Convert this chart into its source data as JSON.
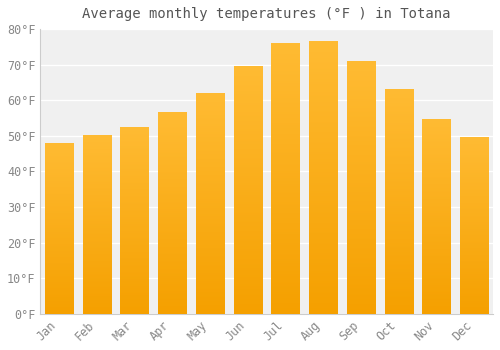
{
  "title": "Average monthly temperatures (°F ) in Totana",
  "months": [
    "Jan",
    "Feb",
    "Mar",
    "Apr",
    "May",
    "Jun",
    "Jul",
    "Aug",
    "Sep",
    "Oct",
    "Nov",
    "Dec"
  ],
  "values": [
    48,
    50,
    52.5,
    56.5,
    62,
    69.5,
    76,
    76.5,
    71,
    63,
    54.5,
    49.5
  ],
  "bar_color_top": "#FFBB33",
  "bar_color_bottom": "#F5A000",
  "background_color": "#FFFFFF",
  "plot_bg_color": "#F0F0F0",
  "grid_color": "#FFFFFF",
  "text_color": "#888888",
  "title_color": "#555555",
  "ylim": [
    0,
    80
  ],
  "yticks": [
    0,
    10,
    20,
    30,
    40,
    50,
    60,
    70,
    80
  ],
  "ytick_labels": [
    "0°F",
    "10°F",
    "20°F",
    "30°F",
    "40°F",
    "50°F",
    "60°F",
    "70°F",
    "80°F"
  ],
  "title_fontsize": 10,
  "tick_fontsize": 8.5
}
